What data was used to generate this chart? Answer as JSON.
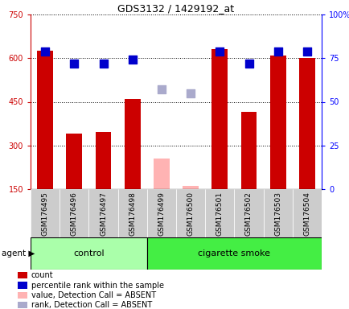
{
  "title": "GDS3132 / 1429192_at",
  "samples": [
    "GSM176495",
    "GSM176496",
    "GSM176497",
    "GSM176498",
    "GSM176499",
    "GSM176500",
    "GSM176501",
    "GSM176502",
    "GSM176503",
    "GSM176504"
  ],
  "counts": [
    625,
    340,
    345,
    460,
    null,
    null,
    630,
    415,
    610,
    600
  ],
  "counts_absent": [
    null,
    null,
    null,
    null,
    255,
    160,
    null,
    null,
    null,
    null
  ],
  "percentile_ranks": [
    79,
    72,
    72,
    74,
    null,
    null,
    79,
    72,
    79,
    79
  ],
  "ranks_absent": [
    null,
    null,
    null,
    null,
    57,
    55,
    null,
    null,
    null,
    null
  ],
  "ylim_left": [
    150,
    750
  ],
  "ylim_right": [
    0,
    100
  ],
  "yticks_left": [
    150,
    300,
    450,
    600,
    750
  ],
  "ytick_labels_left": [
    "150",
    "300",
    "450",
    "600",
    "750"
  ],
  "yticks_right": [
    0,
    25,
    50,
    75,
    100
  ],
  "ytick_labels_right": [
    "0",
    "25",
    "50",
    "75",
    "100%"
  ],
  "n_control": 4,
  "n_smoke": 6,
  "bar_color_present": "#cc0000",
  "bar_color_absent": "#ffb3b3",
  "dot_color_present": "#0000cc",
  "dot_color_absent": "#aaaacc",
  "control_label": "control",
  "smoke_label": "cigarette smoke",
  "agent_label": "agent",
  "control_bg": "#aaffaa",
  "smoke_bg": "#44ee44",
  "tick_bg": "#cccccc",
  "legend_labels": [
    "count",
    "percentile rank within the sample",
    "value, Detection Call = ABSENT",
    "rank, Detection Call = ABSENT"
  ],
  "legend_colors": [
    "#cc0000",
    "#0000cc",
    "#ffb3b3",
    "#aaaacc"
  ],
  "bar_width": 0.55,
  "dot_size": 45
}
